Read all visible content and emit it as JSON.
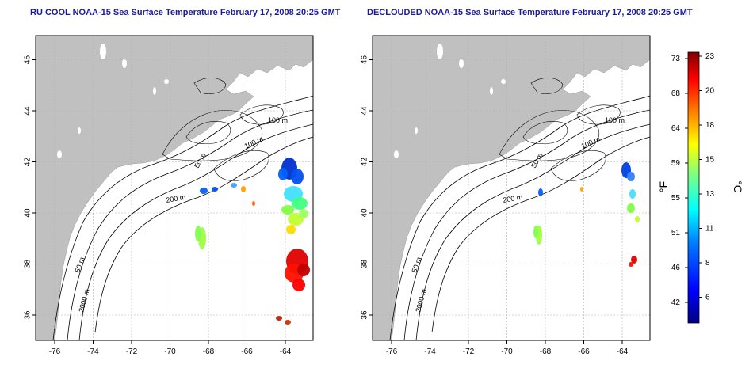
{
  "left_panel": {
    "title": "RU COOL NOAA-15 Sea Surface Temperature February 17, 2008 20:25 GMT",
    "x_ticks": [
      "-76",
      "-74",
      "-72",
      "-70",
      "-68",
      "-66",
      "-64"
    ],
    "y_ticks": [
      "36",
      "38",
      "40",
      "42",
      "44",
      "46"
    ],
    "contour_labels": [
      "100 m",
      "100 m",
      "50 m",
      "200 m",
      "50 m",
      "2000 m"
    ]
  },
  "right_panel": {
    "title": "DECLOUDED NOAA-15 Sea Surface Temperature February 17, 2008 20:25 GMT",
    "x_ticks": [
      "-76",
      "-74",
      "-72",
      "-70",
      "-68",
      "-66",
      "-64"
    ],
    "y_ticks": [
      "36",
      "38",
      "40",
      "42",
      "44",
      "46"
    ],
    "contour_labels": [
      "100 m",
      "100 m",
      "50 m",
      "200 m",
      "50 m",
      "2000 m"
    ]
  },
  "colorbar": {
    "f_label": "°F",
    "c_label": "°C",
    "f_ticks": [
      "73",
      "68",
      "64",
      "59",
      "55",
      "51",
      "46",
      "42"
    ],
    "c_ticks": [
      "23",
      "20",
      "18",
      "15",
      "13",
      "11",
      "8",
      "6"
    ],
    "colors": [
      "#000080",
      "#0000ff",
      "#0080ff",
      "#00ffff",
      "#80ff80",
      "#ffff00",
      "#ff8000",
      "#ff0000",
      "#800000"
    ]
  },
  "colors": {
    "land": "#c0c0c0",
    "ocean": "#ffffff",
    "title": "#1a1aa0",
    "contour": "#000000",
    "grid": "#b0b0b0"
  }
}
